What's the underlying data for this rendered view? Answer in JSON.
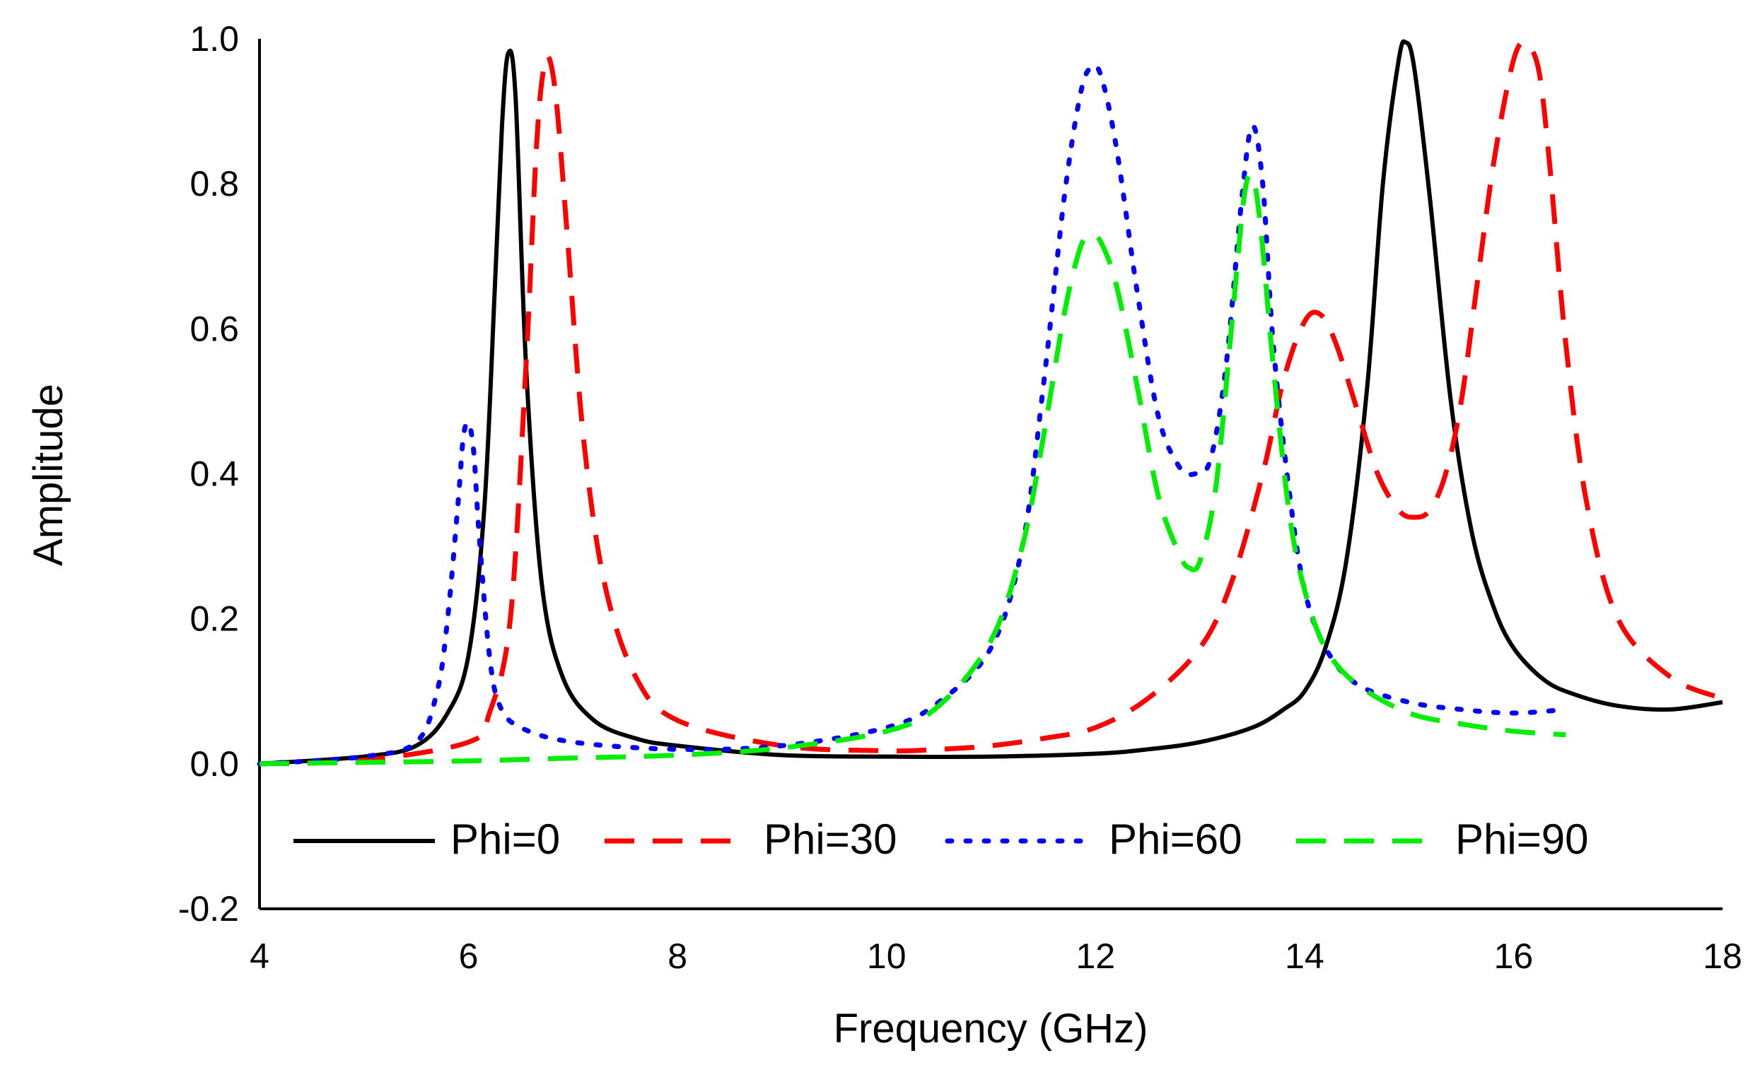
{
  "chart_data": {
    "type": "line",
    "title": "",
    "xlabel": "Frequency (GHz)",
    "ylabel": "Amplitude",
    "xlim": [
      4,
      18
    ],
    "ylim": [
      -0.2,
      1.0
    ],
    "xticks": [
      4,
      6,
      8,
      10,
      12,
      14,
      16,
      18
    ],
    "yticks": [
      -0.2,
      0.0,
      0.2,
      0.4,
      0.6,
      0.8,
      1.0
    ],
    "ytick_labels": [
      "-0.2",
      "0.0",
      "0.2",
      "0.4",
      "0.6",
      "0.8",
      "1.0"
    ],
    "grid": false,
    "legend_position": "bottom (inside plot)",
    "series": [
      {
        "name": "Phi=0",
        "color": "#000000",
        "style": "solid",
        "x": [
          4.0,
          5.0,
          5.5,
          5.8,
          6.0,
          6.15,
          6.25,
          6.32,
          6.38,
          6.45,
          6.55,
          6.7,
          6.9,
          7.2,
          7.6,
          8.0,
          9.0,
          10.0,
          11.0,
          12.0,
          12.5,
          13.0,
          13.5,
          13.8,
          14.0,
          14.2,
          14.4,
          14.6,
          14.75,
          14.9,
          14.97,
          15.05,
          15.2,
          15.4,
          15.6,
          15.8,
          16.0,
          16.3,
          16.6,
          17.0,
          17.5,
          18.0
        ],
        "y": [
          0.0,
          0.01,
          0.025,
          0.07,
          0.15,
          0.35,
          0.65,
          0.88,
          0.98,
          0.92,
          0.55,
          0.25,
          0.12,
          0.06,
          0.035,
          0.025,
          0.012,
          0.01,
          0.01,
          0.014,
          0.02,
          0.03,
          0.05,
          0.075,
          0.1,
          0.16,
          0.28,
          0.52,
          0.8,
          0.97,
          0.995,
          0.96,
          0.78,
          0.5,
          0.32,
          0.22,
          0.16,
          0.115,
          0.095,
          0.08,
          0.075,
          0.085
        ]
      },
      {
        "name": "Phi=30",
        "color": "#ff0000",
        "style": "dashed",
        "x": [
          4.0,
          5.0,
          6.0,
          6.2,
          6.4,
          6.55,
          6.65,
          6.72,
          6.78,
          6.85,
          6.95,
          7.1,
          7.3,
          7.6,
          8.0,
          9.0,
          10.0,
          10.5,
          11.0,
          11.5,
          12.0,
          12.5,
          13.0,
          13.3,
          13.6,
          13.8,
          14.0,
          14.15,
          14.3,
          14.5,
          14.7,
          14.9,
          15.05,
          15.2,
          15.35,
          15.5,
          15.65,
          15.8,
          15.95,
          16.05,
          16.15,
          16.25,
          16.35,
          16.5,
          16.7,
          17.0,
          17.5,
          18.0
        ],
        "y": [
          0.0,
          0.005,
          0.03,
          0.07,
          0.2,
          0.55,
          0.85,
          0.96,
          0.97,
          0.9,
          0.72,
          0.45,
          0.25,
          0.12,
          0.06,
          0.025,
          0.018,
          0.02,
          0.025,
          0.035,
          0.05,
          0.09,
          0.16,
          0.25,
          0.4,
          0.53,
          0.61,
          0.62,
          0.58,
          0.49,
          0.4,
          0.35,
          0.34,
          0.35,
          0.4,
          0.5,
          0.66,
          0.82,
          0.94,
          0.99,
          0.99,
          0.95,
          0.82,
          0.58,
          0.36,
          0.2,
          0.12,
          0.09
        ]
      },
      {
        "name": "Phi=60",
        "color": "#0000ff",
        "style": "dotted",
        "x": [
          4.0,
          5.0,
          5.5,
          5.7,
          5.8,
          5.9,
          5.95,
          6.0,
          6.05,
          6.1,
          6.2,
          6.3,
          6.5,
          7.0,
          8.0,
          9.0,
          10.0,
          10.5,
          11.0,
          11.3,
          11.5,
          11.7,
          11.85,
          11.95,
          12.05,
          12.2,
          12.4,
          12.6,
          12.8,
          12.95,
          13.1,
          13.25,
          13.4,
          13.5,
          13.6,
          13.7,
          13.85,
          14.0,
          14.2,
          14.5,
          15.0,
          15.5,
          16.0,
          16.5
        ],
        "y": [
          0.0,
          0.01,
          0.03,
          0.1,
          0.2,
          0.36,
          0.45,
          0.47,
          0.43,
          0.32,
          0.15,
          0.08,
          0.05,
          0.03,
          0.02,
          0.025,
          0.05,
          0.085,
          0.16,
          0.3,
          0.52,
          0.78,
          0.92,
          0.96,
          0.95,
          0.85,
          0.65,
          0.48,
          0.41,
          0.4,
          0.42,
          0.55,
          0.78,
          0.88,
          0.8,
          0.58,
          0.38,
          0.24,
          0.16,
          0.11,
          0.085,
          0.075,
          0.07,
          0.075
        ]
      },
      {
        "name": "Phi=90",
        "color": "#00ee00",
        "style": "dashed",
        "x": [
          4.0,
          5.0,
          6.0,
          7.0,
          8.0,
          9.0,
          10.0,
          10.5,
          11.0,
          11.3,
          11.5,
          11.7,
          11.85,
          11.95,
          12.05,
          12.2,
          12.4,
          12.6,
          12.8,
          12.9,
          13.0,
          13.15,
          13.3,
          13.42,
          13.5,
          13.58,
          13.7,
          13.85,
          14.0,
          14.2,
          14.5,
          15.0,
          15.5,
          16.0,
          16.5
        ],
        "y": [
          0.0,
          0.002,
          0.004,
          0.008,
          0.012,
          0.022,
          0.045,
          0.08,
          0.17,
          0.3,
          0.45,
          0.62,
          0.71,
          0.73,
          0.72,
          0.66,
          0.52,
          0.37,
          0.29,
          0.27,
          0.28,
          0.38,
          0.6,
          0.78,
          0.81,
          0.74,
          0.55,
          0.35,
          0.24,
          0.16,
          0.11,
          0.07,
          0.055,
          0.045,
          0.04
        ]
      }
    ]
  }
}
